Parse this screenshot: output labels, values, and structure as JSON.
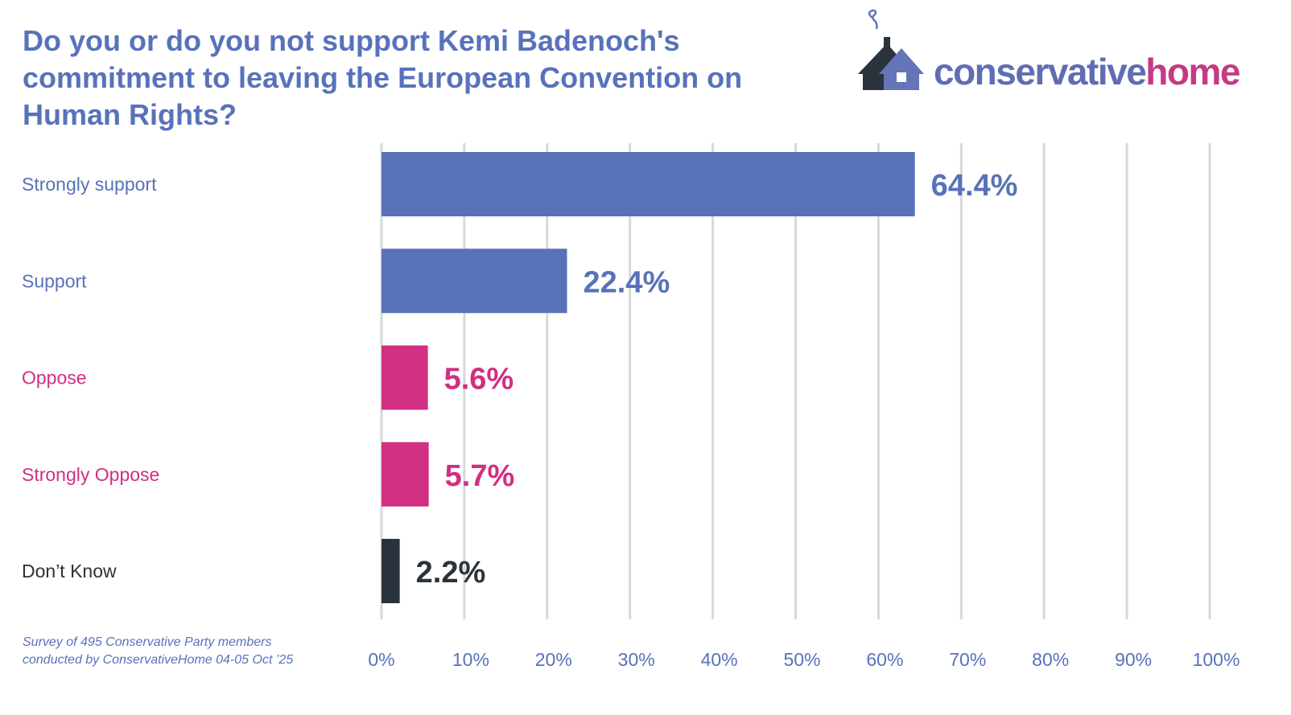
{
  "title": "Do you or do you not support Kemi Badenoch's commitment to leaving the European Convention on Human Rights?",
  "logo": {
    "part1": "conservative",
    "part2": "home"
  },
  "note": {
    "line1": "Survey of 495 Conservative Party members",
    "line2": "conducted by ConservativeHome 04-05 Oct ’25"
  },
  "colors": {
    "blue": "#5872ba",
    "pink": "#d12f82",
    "dark": "#2a333b",
    "grid": "#d9d9d9"
  },
  "chart_data": {
    "type": "bar",
    "orientation": "horizontal",
    "title": "Do you or do you not support Kemi Badenoch's commitment to leaving the European Convention on Human Rights?",
    "categories": [
      "Strongly support",
      "Support",
      "Oppose",
      "Strongly Oppose",
      "Don’t Know"
    ],
    "values": [
      64.4,
      22.4,
      5.6,
      5.7,
      2.2
    ],
    "value_labels": [
      "64.4%",
      "22.4%",
      "5.6%",
      "5.7%",
      "2.2%"
    ],
    "bar_colors": [
      "#5872ba",
      "#5872ba",
      "#d12f82",
      "#d12f82",
      "#2a333b"
    ],
    "label_colors": [
      "#5872ba",
      "#5872ba",
      "#d12f82",
      "#d12f82",
      "#2a333b"
    ],
    "xlim": [
      0,
      100
    ],
    "xticks": [
      "0%",
      "10%",
      "20%",
      "30%",
      "40%",
      "50%",
      "60%",
      "70%",
      "80%",
      "90%",
      "100%"
    ],
    "grid": true,
    "xlabel": "",
    "ylabel": ""
  }
}
